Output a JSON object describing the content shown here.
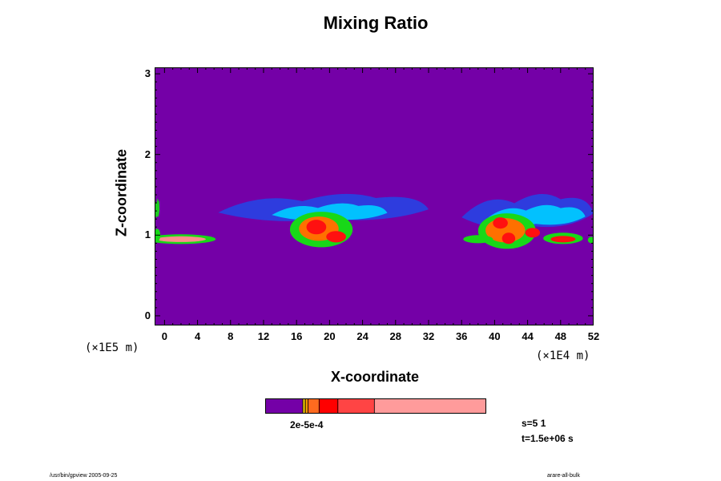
{
  "chart_data": {
    "type": "heatmap",
    "title": "Mixing Ratio",
    "xlabel": "X-coordinate",
    "ylabel": "Z-coordinate",
    "x_unit": "(×1E4 m)",
    "y_unit": "(×1E5 m)",
    "xlim": [
      -1.2,
      52
    ],
    "ylim": [
      -0.12,
      3.08
    ],
    "x_ticks": [
      0,
      4,
      8,
      12,
      16,
      20,
      24,
      28,
      32,
      36,
      40,
      44,
      48,
      52
    ],
    "y_ticks": [
      0,
      1,
      2,
      3
    ],
    "background_color": "#7400a7",
    "colorbar": {
      "colors": [
        "#7400a7",
        "#e2c000",
        "#ff9a00",
        "#ff6a1f",
        "#ff0000",
        "#ff4444",
        "#ff9b9b"
      ],
      "fractions": [
        0.17,
        0.012,
        0.012,
        0.05,
        0.085,
        0.165,
        0.506
      ],
      "labels_text": "2e-5e-4"
    },
    "cloud_bands": [
      {
        "x": [
          -1.2,
          -0.6
        ],
        "z": [
          1.18,
          1.46
        ],
        "level": 3
      },
      {
        "x": [
          6.5,
          32
        ],
        "z": [
          1.12,
          1.52
        ],
        "level": 1
      },
      {
        "x": [
          13,
          27
        ],
        "z": [
          1.15,
          1.4
        ],
        "level": 2
      },
      {
        "x": [
          36,
          52
        ],
        "z": [
          1.02,
          1.52
        ],
        "level": 1
      },
      {
        "x": [
          39,
          51
        ],
        "z": [
          1.08,
          1.38
        ],
        "level": 2
      }
    ],
    "cloud_patches": [
      {
        "x": 2,
        "z": 0.95,
        "rx": 4.2,
        "rz": 0.06,
        "level": 3
      },
      {
        "x": 2,
        "z": 0.95,
        "rx": 3.0,
        "rz": 0.035,
        "level": 6
      },
      {
        "x": -0.9,
        "z": 1.0,
        "rx": 0.4,
        "rz": 0.08,
        "level": 3
      },
      {
        "x": 19,
        "z": 1.07,
        "rx": 3.8,
        "rz": 0.22,
        "level": 3
      },
      {
        "x": 18.7,
        "z": 1.08,
        "rx": 2.4,
        "rz": 0.15,
        "level": 4
      },
      {
        "x": 18.4,
        "z": 1.1,
        "rx": 1.2,
        "rz": 0.09,
        "level": 5
      },
      {
        "x": 20.8,
        "z": 0.98,
        "rx": 1.2,
        "rz": 0.07,
        "level": 5
      },
      {
        "x": 41.5,
        "z": 1.05,
        "rx": 3.5,
        "rz": 0.22,
        "level": 3
      },
      {
        "x": 41.3,
        "z": 1.06,
        "rx": 2.4,
        "rz": 0.15,
        "level": 4
      },
      {
        "x": 40.7,
        "z": 1.15,
        "rx": 0.9,
        "rz": 0.07,
        "level": 5
      },
      {
        "x": 41.7,
        "z": 0.96,
        "rx": 0.8,
        "rz": 0.07,
        "level": 5
      },
      {
        "x": 44.6,
        "z": 1.03,
        "rx": 0.9,
        "rz": 0.06,
        "level": 5
      },
      {
        "x": 38,
        "z": 0.95,
        "rx": 1.8,
        "rz": 0.05,
        "level": 3
      },
      {
        "x": 48.3,
        "z": 0.96,
        "rx": 2.4,
        "rz": 0.07,
        "level": 3
      },
      {
        "x": 48.3,
        "z": 0.95,
        "rx": 1.5,
        "rz": 0.04,
        "level": 5
      },
      {
        "x": 51.7,
        "z": 0.94,
        "rx": 0.4,
        "rz": 0.04,
        "level": 3
      }
    ],
    "level_colors": [
      "#7400a7",
      "#2a3fe0",
      "#00c8ff",
      "#18d818",
      "#ff7000",
      "#ff1010",
      "#ff8b8b"
    ]
  },
  "info": {
    "step": "s=5 1",
    "time": "t=1.5e+06 s"
  },
  "footer": {
    "left": "/usr/bin/gpview 2005-09-25",
    "right": "arare-all-bulk"
  }
}
